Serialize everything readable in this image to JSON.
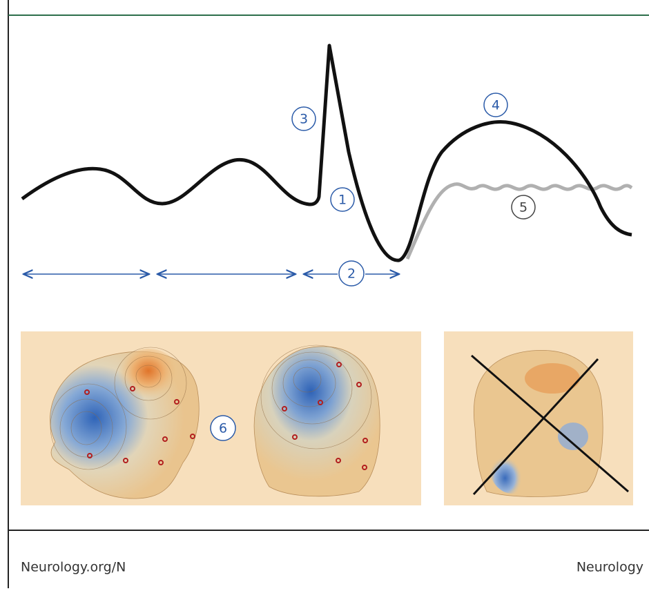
{
  "figure": {
    "markers": [
      "1",
      "2",
      "3",
      "4",
      "5",
      "6"
    ]
  },
  "footer": {
    "left": "Neurology.org/N",
    "right": "Neurology"
  }
}
